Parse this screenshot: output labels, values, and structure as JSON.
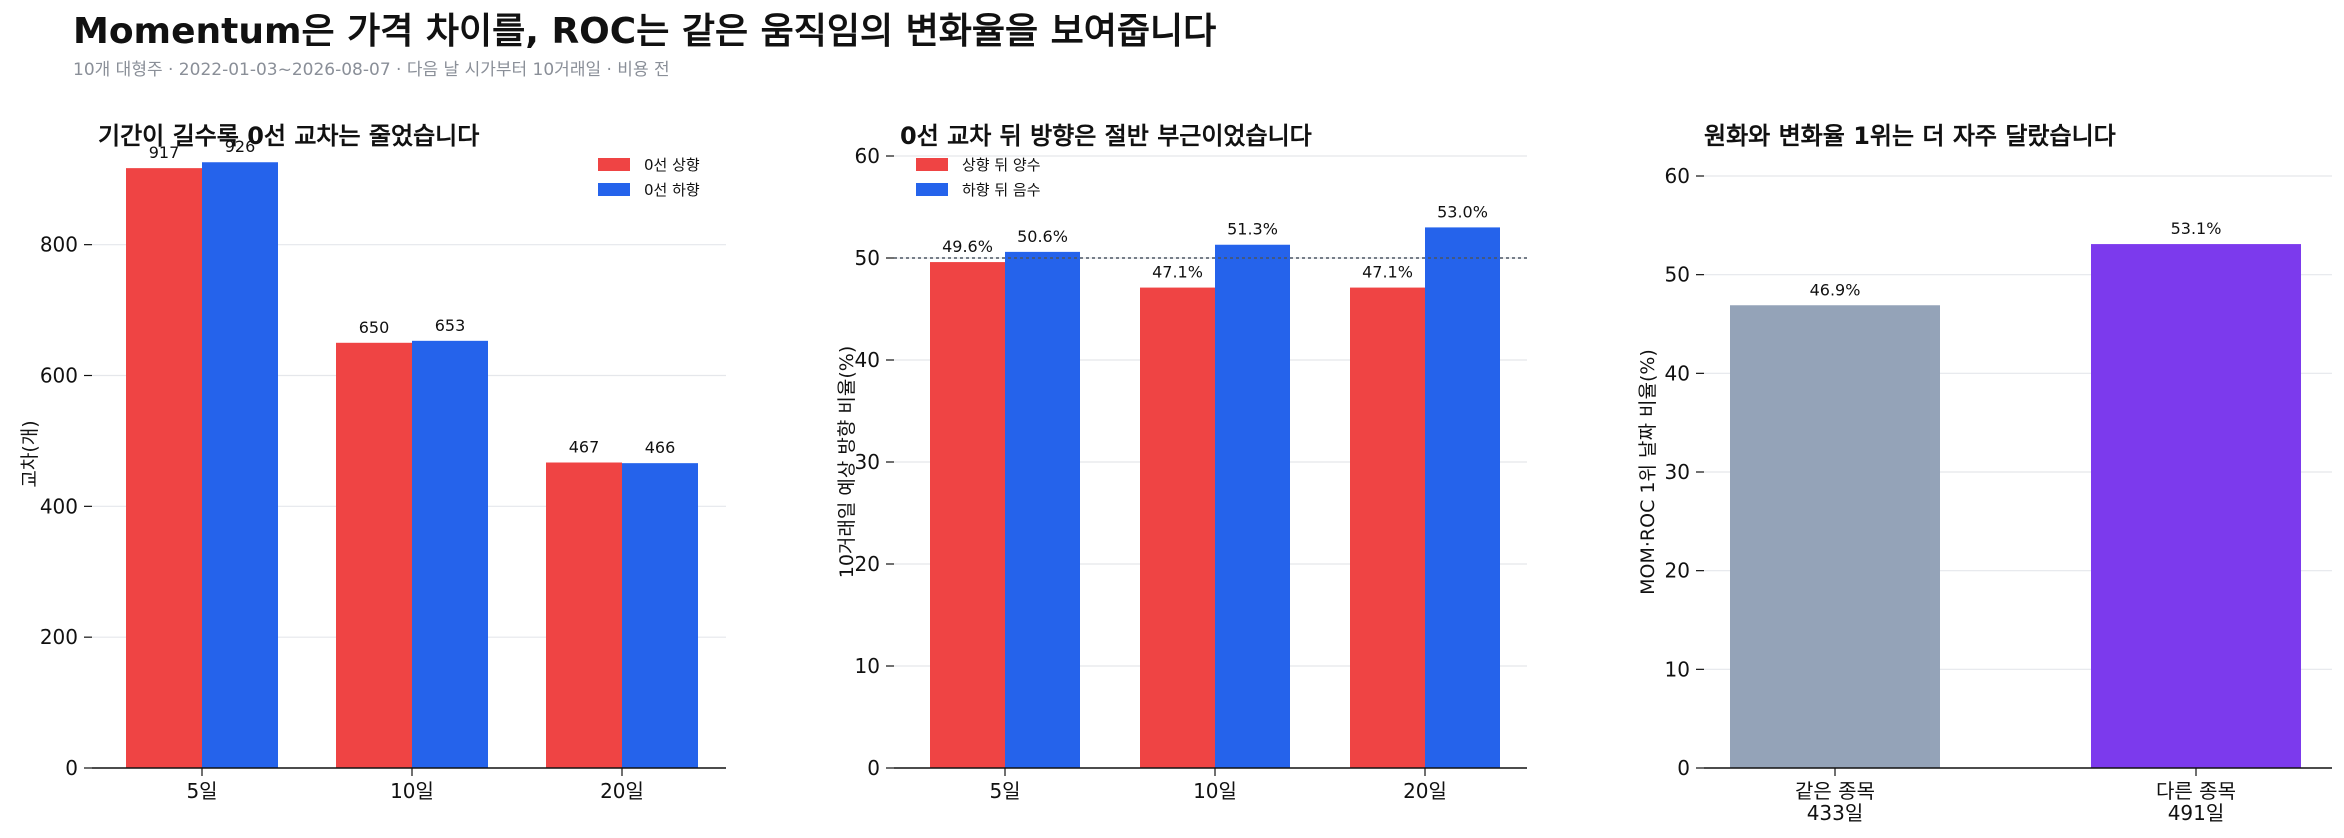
{
  "title": "Momentum은 가격 차이를, ROC는 같은 움직임의 변화율을 보여줍니다",
  "subtitle": "10개 대형주 · 2022-01-03~2026-08-07 · 다음 날 시가부터 10거래일 · 비용 전",
  "colors": {
    "up": "#ef4444",
    "down": "#2563eb",
    "same": "#94a3b8",
    "diff": "#7c3aed",
    "grid": "#e5e7eb"
  },
  "chart_data": [
    {
      "type": "bar",
      "title": "기간이 길수록 0선 교차는 줄었습니다",
      "ylabel": "교차(개)",
      "xlabel": "",
      "categories": [
        "5일",
        "10일",
        "20일"
      ],
      "series": [
        {
          "name": "0선 상향",
          "values": [
            917,
            650,
            467
          ],
          "labels": [
            "917",
            "650",
            "467"
          ]
        },
        {
          "name": "0선 하향",
          "values": [
            926,
            653,
            466
          ],
          "labels": [
            "926",
            "653",
            "466"
          ]
        }
      ],
      "ylim": [
        0,
        960
      ],
      "yticks": [
        "0",
        "200",
        "400",
        "600",
        "800"
      ],
      "grid": true,
      "legend": "top-right"
    },
    {
      "type": "bar",
      "title": "0선 교차 뒤 방향은 절반 부근이었습니다",
      "ylabel": "10거래일 예상 방향 비율(%)",
      "xlabel": "",
      "categories": [
        "5일",
        "10일",
        "20일"
      ],
      "series": [
        {
          "name": "상향 뒤 양수",
          "values": [
            49.6,
            47.1,
            47.1
          ],
          "labels": [
            "49.6%",
            "47.1%",
            "47.1%"
          ]
        },
        {
          "name": "하향 뒤 음수",
          "values": [
            50.6,
            51.3,
            53.0
          ],
          "labels": [
            "50.6%",
            "51.3%",
            "53.0%"
          ]
        }
      ],
      "reference_line": 50,
      "ylim": [
        0,
        60
      ],
      "yticks": [
        "0",
        "10",
        "20",
        "30",
        "40",
        "50",
        "60"
      ],
      "grid": true,
      "legend": "top-left"
    },
    {
      "type": "bar",
      "title": "원화와 변화율 1위는 더 자주 달랐습니다",
      "ylabel": "MOM·ROC 1위 날짜 비율(%)",
      "xlabel": "",
      "categories": [
        [
          "같은 종목",
          "433일"
        ],
        [
          "다른 종목",
          "491일"
        ]
      ],
      "values": [
        46.9,
        53.1
      ],
      "labels": [
        "46.9%",
        "53.1%"
      ],
      "ylim": [
        0,
        60
      ],
      "yticks": [
        "0",
        "10",
        "20",
        "30",
        "40",
        "50",
        "60"
      ],
      "grid": true
    }
  ]
}
